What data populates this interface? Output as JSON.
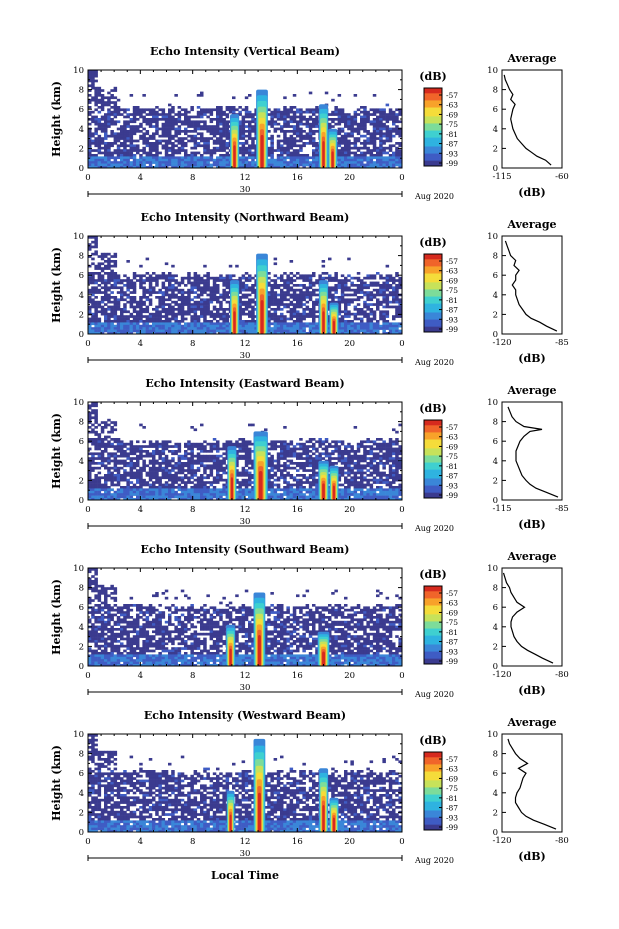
{
  "figure": {
    "ylabel": "Height (km)",
    "xlabel": "Local Time",
    "date_label": "Aug 2020",
    "colorbar_label": "(dB)",
    "colormap": [
      "#3b3b8f",
      "#3f5cc4",
      "#3a86d8",
      "#2fb3e0",
      "#3fd0d0",
      "#7ddc9a",
      "#c7e25a",
      "#f5dc3a",
      "#f8a22a",
      "#f0652a",
      "#d62a1e"
    ]
  },
  "chart_data": [
    {
      "type": "heatmap",
      "title": "Echo Intensity (Vertical Beam)",
      "ylabel": "Height (km)",
      "x_ticks": [
        "0",
        "4",
        "8",
        "12",
        "16",
        "20",
        "0"
      ],
      "y_ticks": [
        "0",
        "2",
        "4",
        "6",
        "8",
        "10"
      ],
      "day_label": "30",
      "xlim": [
        0,
        24
      ],
      "ylim": [
        0,
        10
      ],
      "colorbar_ticks": [
        "-57",
        "-63",
        "-69",
        "-75",
        "-81",
        "-87",
        "-93",
        "-99"
      ],
      "clim": [
        -99,
        -57
      ],
      "profile": {
        "title": "Average",
        "xlabel": "(dB)",
        "x_ticks": [
          "-115",
          "-60"
        ],
        "xlim": [
          -115,
          -60
        ],
        "heights": [
          0.3,
          0.8,
          1.2,
          1.6,
          2.0,
          2.5,
          3.0,
          3.5,
          4.0,
          4.5,
          5.0,
          5.5,
          6.0,
          6.5,
          7.0,
          7.5,
          8.0,
          8.5,
          9.0,
          9.5
        ],
        "values": [
          -70,
          -75,
          -83,
          -88,
          -93,
          -97,
          -101,
          -103,
          -105,
          -106,
          -107,
          -106,
          -105,
          -103,
          -107,
          -105,
          -108,
          -110,
          -112,
          -113
        ]
      }
    },
    {
      "type": "heatmap",
      "title": "Echo Intensity (Northward Beam)",
      "ylabel": "Height (km)",
      "x_ticks": [
        "0",
        "4",
        "8",
        "12",
        "16",
        "20",
        "0"
      ],
      "y_ticks": [
        "0",
        "2",
        "4",
        "6",
        "8",
        "10"
      ],
      "day_label": "30",
      "xlim": [
        0,
        24
      ],
      "ylim": [
        0,
        10
      ],
      "colorbar_ticks": [
        "-57",
        "-63",
        "-69",
        "-75",
        "-81",
        "-87",
        "-93",
        "-99"
      ],
      "clim": [
        -99,
        -57
      ],
      "profile": {
        "title": "Average",
        "xlabel": "(dB)",
        "x_ticks": [
          "-120",
          "-85"
        ],
        "xlim": [
          -120,
          -85
        ],
        "heights": [
          0.3,
          0.8,
          1.2,
          1.6,
          2.0,
          2.5,
          3.0,
          3.5,
          4.0,
          4.5,
          5.0,
          5.5,
          6.0,
          6.5,
          7.0,
          7.5,
          8.0,
          8.5,
          9.0,
          9.5
        ],
        "values": [
          -88,
          -94,
          -98,
          -103,
          -106,
          -108,
          -110,
          -111,
          -112,
          -112,
          -114,
          -112,
          -112,
          -110,
          -113,
          -112,
          -115,
          -116,
          -117,
          -118
        ]
      }
    },
    {
      "type": "heatmap",
      "title": "Echo Intensity (Eastward Beam)",
      "ylabel": "Height (km)",
      "x_ticks": [
        "0",
        "4",
        "8",
        "12",
        "16",
        "20",
        "0"
      ],
      "y_ticks": [
        "0",
        "2",
        "4",
        "6",
        "8",
        "10"
      ],
      "day_label": "30",
      "xlim": [
        0,
        24
      ],
      "ylim": [
        0,
        10
      ],
      "colorbar_ticks": [
        "-57",
        "-63",
        "-69",
        "-75",
        "-81",
        "-87",
        "-93",
        "-99"
      ],
      "clim": [
        -99,
        -57
      ],
      "profile": {
        "title": "Average",
        "xlabel": "(dB)",
        "x_ticks": [
          "-115",
          "-85"
        ],
        "xlim": [
          -115,
          -85
        ],
        "heights": [
          0.3,
          0.8,
          1.2,
          1.6,
          2.0,
          2.5,
          3.0,
          3.5,
          4.0,
          4.5,
          5.0,
          5.5,
          6.0,
          6.5,
          7.0,
          7.2,
          7.5,
          8.0,
          8.5,
          9.0,
          9.5
        ],
        "values": [
          -87,
          -93,
          -98,
          -101,
          -103,
          -105,
          -106,
          -107,
          -108,
          -108,
          -108,
          -107,
          -106,
          -104,
          -101,
          -95,
          -104,
          -108,
          -110,
          -111,
          -112
        ]
      }
    },
    {
      "type": "heatmap",
      "title": "Echo Intensity (Southward Beam)",
      "ylabel": "Height (km)",
      "x_ticks": [
        "0",
        "4",
        "8",
        "12",
        "16",
        "20",
        "0"
      ],
      "y_ticks": [
        "0",
        "2",
        "4",
        "6",
        "8",
        "10"
      ],
      "day_label": "30",
      "xlim": [
        0,
        24
      ],
      "ylim": [
        0,
        10
      ],
      "colorbar_ticks": [
        "-57",
        "-63",
        "-69",
        "-75",
        "-81",
        "-87",
        "-93",
        "-99"
      ],
      "clim": [
        -99,
        -57
      ],
      "profile": {
        "title": "Average",
        "xlabel": "(dB)",
        "x_ticks": [
          "-120",
          "-80"
        ],
        "xlim": [
          -120,
          -80
        ],
        "heights": [
          0.3,
          0.8,
          1.2,
          1.6,
          2.0,
          2.5,
          3.0,
          3.5,
          4.0,
          4.5,
          5.0,
          5.5,
          6.0,
          6.5,
          7.0,
          7.5,
          8.0,
          8.5,
          9.0,
          9.5
        ],
        "values": [
          -86,
          -93,
          -98,
          -103,
          -107,
          -110,
          -112,
          -113,
          -114,
          -114,
          -113,
          -110,
          -105,
          -110,
          -112,
          -114,
          -115,
          -117,
          -118,
          -119
        ]
      }
    },
    {
      "type": "heatmap",
      "title": "Echo Intensity (Westward Beam)",
      "ylabel": "Height (km)",
      "x_ticks": [
        "0",
        "4",
        "8",
        "12",
        "16",
        "20",
        "0"
      ],
      "y_ticks": [
        "0",
        "2",
        "4",
        "6",
        "8",
        "10"
      ],
      "day_label": "30",
      "xlim": [
        0,
        24
      ],
      "ylim": [
        0,
        10
      ],
      "colorbar_ticks": [
        "-57",
        "-63",
        "-69",
        "-75",
        "-81",
        "-87",
        "-93",
        "-99"
      ],
      "clim": [
        -99,
        -57
      ],
      "profile": {
        "title": "Average",
        "xlabel": "(dB)",
        "x_ticks": [
          "-120",
          "-80"
        ],
        "xlim": [
          -120,
          -80
        ],
        "heights": [
          0.3,
          0.8,
          1.2,
          1.6,
          2.0,
          2.5,
          3.0,
          3.5,
          4.0,
          4.5,
          5.0,
          5.5,
          6.0,
          6.5,
          7.0,
          7.5,
          8.0,
          8.5,
          9.0,
          9.5
        ],
        "values": [
          -84,
          -92,
          -99,
          -104,
          -107,
          -109,
          -111,
          -111,
          -110,
          -108,
          -107,
          -106,
          -104,
          -109,
          -103,
          -108,
          -111,
          -113,
          -115,
          -116
        ]
      }
    }
  ]
}
